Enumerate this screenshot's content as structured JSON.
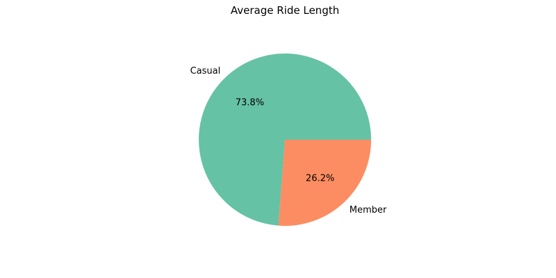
{
  "chart_data": {
    "type": "pie",
    "title": "Average Ride Length",
    "slices": [
      {
        "label": "Casual",
        "value": 73.8,
        "pct_label": "73.8%",
        "color": "#66c2a5"
      },
      {
        "label": "Member",
        "value": 26.2,
        "pct_label": "26.2%",
        "color": "#fc8d62"
      }
    ],
    "start_angle_deg": 0,
    "direction": "counterclockwise",
    "legend": "none"
  }
}
